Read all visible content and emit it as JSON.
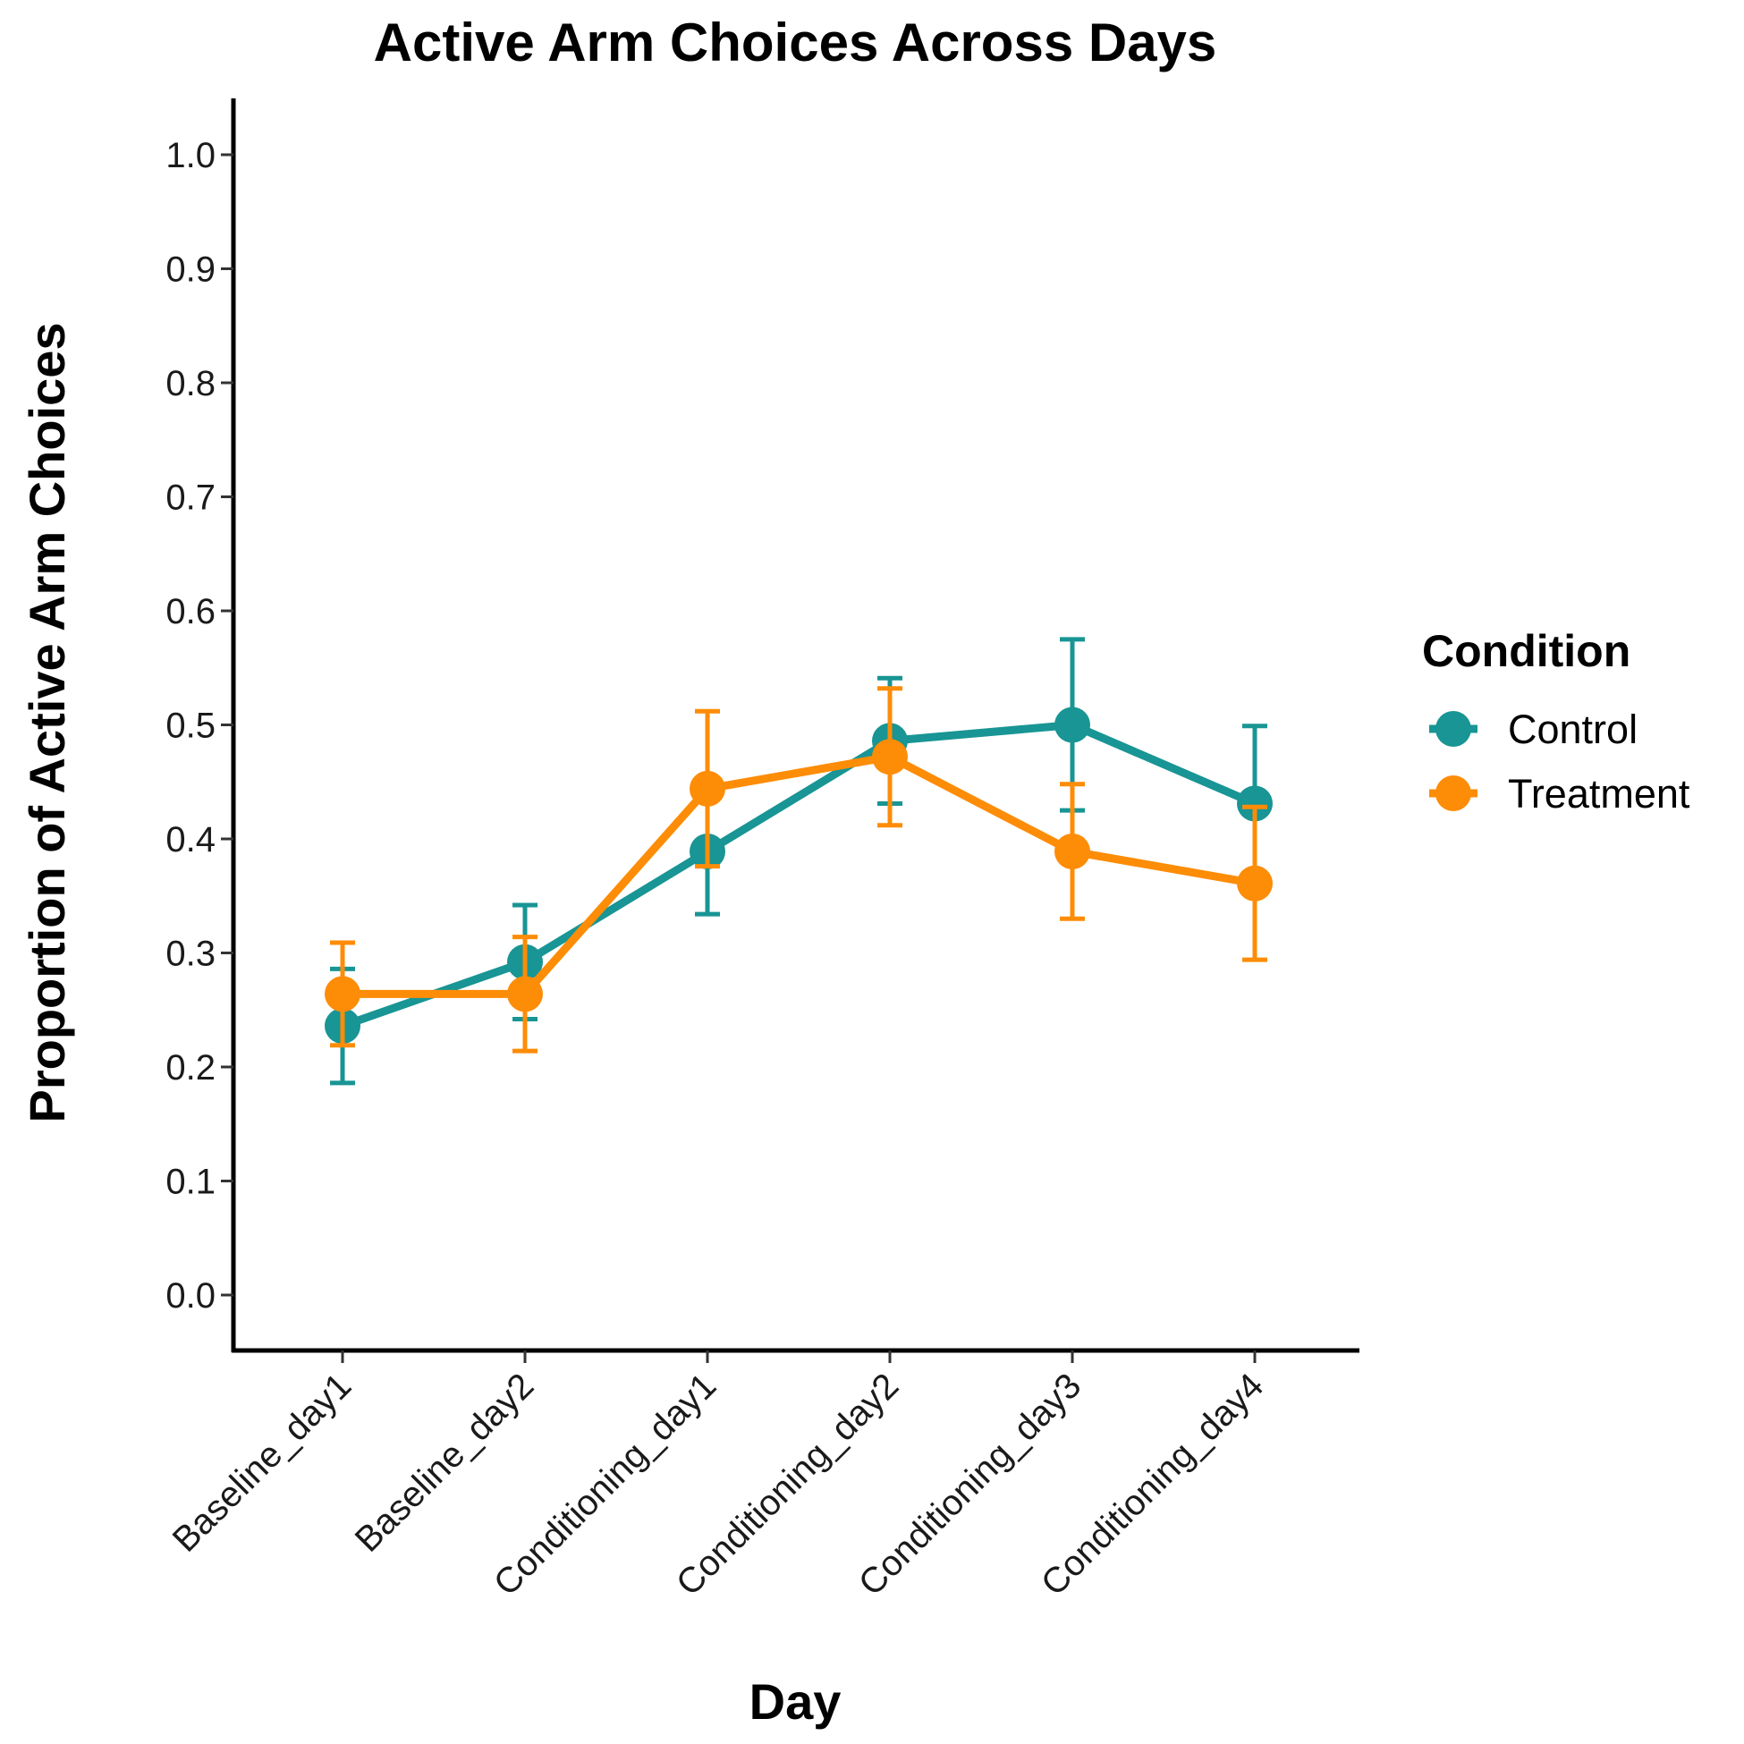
{
  "chart_data": {
    "type": "line",
    "title": "Active Arm Choices Across Days",
    "xlabel": "Day",
    "ylabel": "Proportion of Active Arm Choices",
    "categories": [
      "Baseline_day1",
      "Baseline_day2",
      "Conditioning_day1",
      "Conditioning_day2",
      "Conditioning_day3",
      "Conditioning_day4"
    ],
    "yticks": [
      "0.0",
      "0.1",
      "0.2",
      "0.3",
      "0.4",
      "0.5",
      "0.6",
      "0.7",
      "0.8",
      "0.9",
      "1.0"
    ],
    "ylim": [
      -0.05,
      1.05
    ],
    "grid": false,
    "legend": {
      "title": "Condition",
      "position": "right"
    },
    "series": [
      {
        "name": "Control",
        "color": "#189594",
        "values": [
          0.236,
          0.292,
          0.389,
          0.486,
          0.5,
          0.431
        ],
        "error_low": [
          0.186,
          0.242,
          0.334,
          0.431,
          0.425,
          0.363
        ],
        "error_high": [
          0.286,
          0.342,
          0.444,
          0.541,
          0.575,
          0.499
        ]
      },
      {
        "name": "Treatment",
        "color": "#FD8C07",
        "values": [
          0.264,
          0.264,
          0.444,
          0.472,
          0.389,
          0.361
        ],
        "error_low": [
          0.219,
          0.214,
          0.376,
          0.412,
          0.33,
          0.294
        ],
        "error_high": [
          0.309,
          0.314,
          0.512,
          0.532,
          0.448,
          0.428
        ]
      }
    ]
  }
}
